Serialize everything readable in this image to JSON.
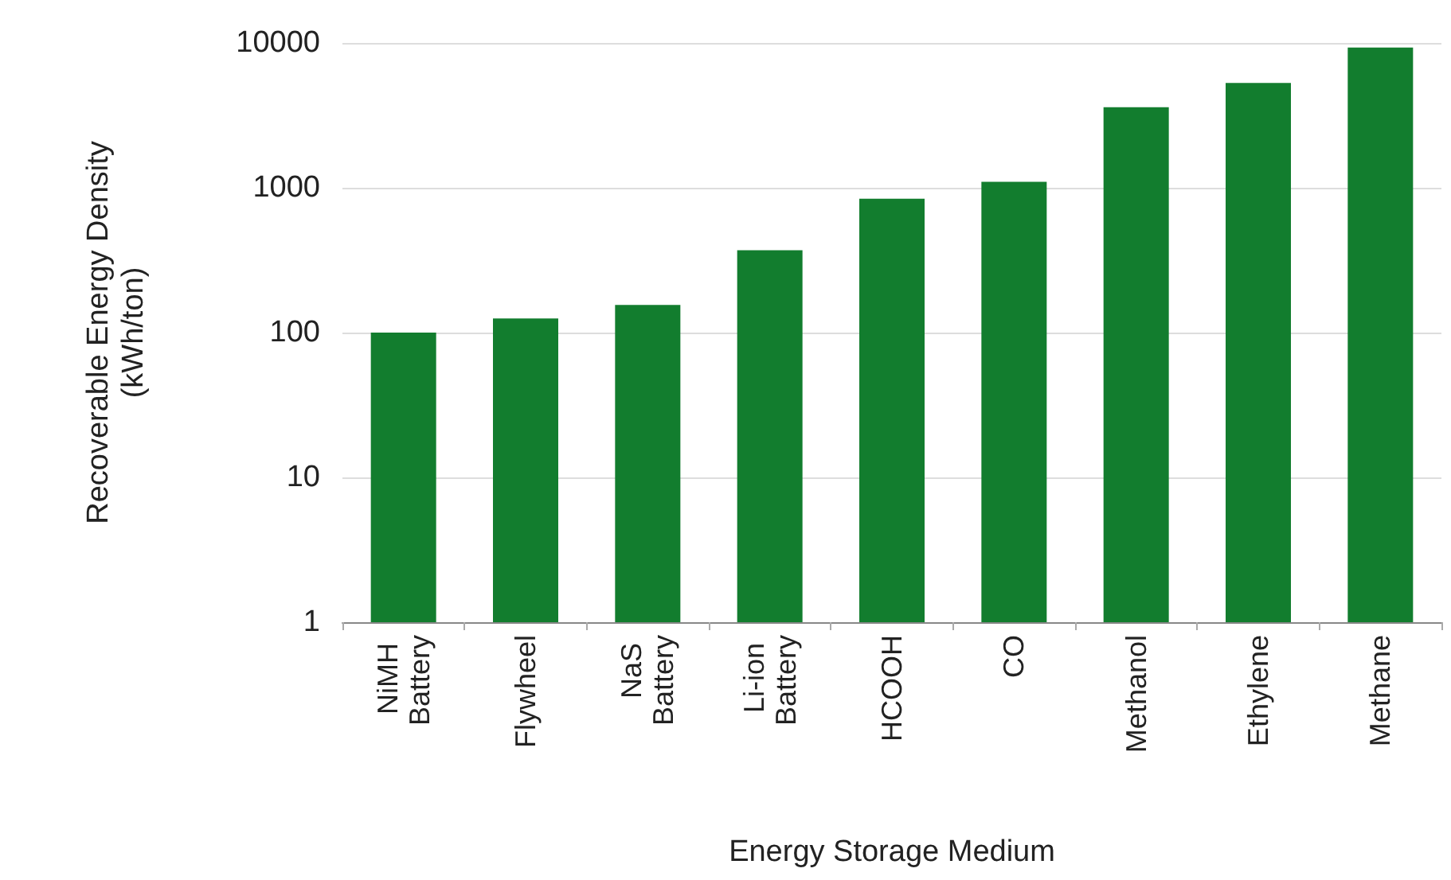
{
  "chart_data": {
    "type": "bar",
    "xlabel": "Energy Storage Medium",
    "ylabel": "Recoverable Energy Density\n(kWh/ton)",
    "categories": [
      "NiMH Battery",
      "Flywheel",
      "NaS Battery",
      "Li-ion Battery",
      "HCOOH",
      "CO",
      "Methanol",
      "Ethylene",
      "Methane"
    ],
    "values": [
      100,
      125,
      155,
      370,
      840,
      1100,
      3600,
      5300,
      9300
    ],
    "color": "#127d2e",
    "log": true,
    "ylim": [
      1,
      10000
    ],
    "yticks": [
      1,
      10,
      100,
      1000,
      10000
    ],
    "grid": "y"
  }
}
